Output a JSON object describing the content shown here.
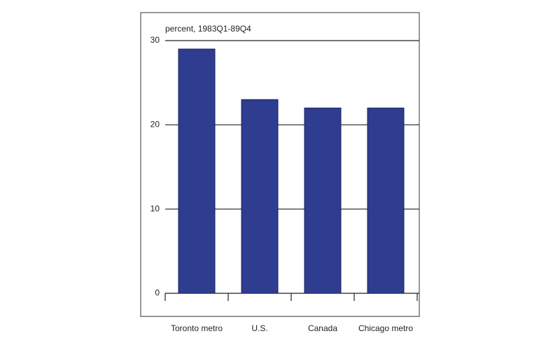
{
  "chart_data": {
    "type": "bar",
    "y_label": "percent, 1983Q1-89Q4",
    "categories": [
      "Toronto metro",
      "U.S.",
      "Canada",
      "Chicago metro"
    ],
    "values": [
      29,
      23,
      22,
      22
    ],
    "color": "#2e3d8f",
    "ylim": [
      0,
      30
    ],
    "yticks": [
      0,
      10,
      20,
      30
    ],
    "grid": true
  }
}
